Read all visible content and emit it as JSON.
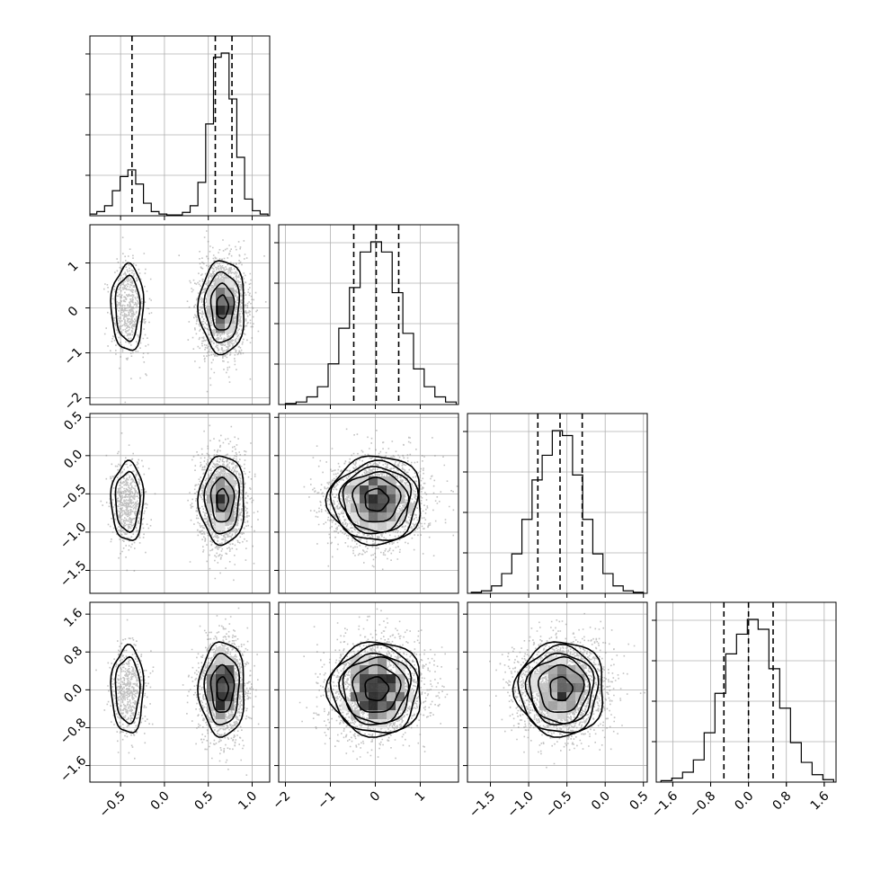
{
  "chart_data": {
    "type": "corner",
    "parameters": [
      {
        "range": [
          -0.85,
          1.2
        ],
        "ticks": [
          -0.5,
          0.0,
          0.5,
          1.0
        ],
        "tick_labels": [
          "−0.5",
          "0.0",
          "0.5",
          "1.0"
        ],
        "hist_counts": [
          2,
          5,
          12,
          30,
          47,
          55,
          38,
          15,
          5,
          2,
          1,
          1,
          4,
          12,
          40,
          110,
          190,
          195,
          140,
          70,
          20,
          6,
          2
        ],
        "hist_range": [
          -0.86,
          1.18
        ],
        "quantiles": [
          -0.37,
          0.58,
          0.77
        ]
      },
      {
        "range": [
          -2.15,
          1.85
        ],
        "ticks": [
          -2,
          -1,
          0,
          1
        ],
        "tick_labels": [
          "−2",
          "−1",
          "0",
          "1"
        ],
        "hist_counts": [
          2,
          5,
          15,
          35,
          80,
          150,
          230,
          300,
          320,
          300,
          220,
          140,
          70,
          35,
          15,
          5
        ],
        "hist_range": [
          -2.0,
          1.8
        ],
        "quantiles": [
          -0.48,
          0.02,
          0.52
        ]
      },
      {
        "range": [
          -1.8,
          0.55
        ],
        "ticks": [
          -1.5,
          -1.0,
          -0.5,
          0.0,
          0.5
        ],
        "tick_labels": [
          "−1.5",
          "−1.0",
          "−0.5",
          "0.0",
          "0.5"
        ],
        "hist_counts": [
          2,
          5,
          15,
          40,
          80,
          150,
          230,
          280,
          330,
          320,
          240,
          150,
          80,
          40,
          15,
          5,
          2
        ],
        "hist_range": [
          -1.75,
          0.5
        ],
        "quantiles": [
          -0.88,
          -0.59,
          -0.3
        ]
      },
      {
        "range": [
          -1.95,
          1.85
        ],
        "ticks": [
          -1.6,
          -0.8,
          0.0,
          0.8,
          1.6
        ],
        "tick_labels": [
          "−1.6",
          "−0.8",
          "0.0",
          "0.8",
          "1.6"
        ],
        "hist_counts": [
          3,
          8,
          20,
          45,
          100,
          180,
          260,
          300,
          330,
          310,
          230,
          150,
          80,
          40,
          15,
          5
        ],
        "hist_range": [
          -1.85,
          1.8
        ],
        "quantiles": [
          -0.52,
          0.0,
          0.52
        ]
      }
    ],
    "distribution": {
      "modes": [
        {
          "weight": 0.22,
          "mean": [
            -0.42,
            0.0,
            -0.6,
            0.0
          ],
          "sd": [
            0.1,
            0.52,
            0.28,
            0.5
          ]
        },
        {
          "weight": 0.78,
          "mean": [
            0.66,
            0.02,
            -0.58,
            0.02
          ],
          "sd": [
            0.13,
            0.52,
            0.29,
            0.5
          ]
        }
      ]
    },
    "contour_levels_sigma": [
      0.5,
      1.0,
      1.5,
      2.0
    ]
  }
}
